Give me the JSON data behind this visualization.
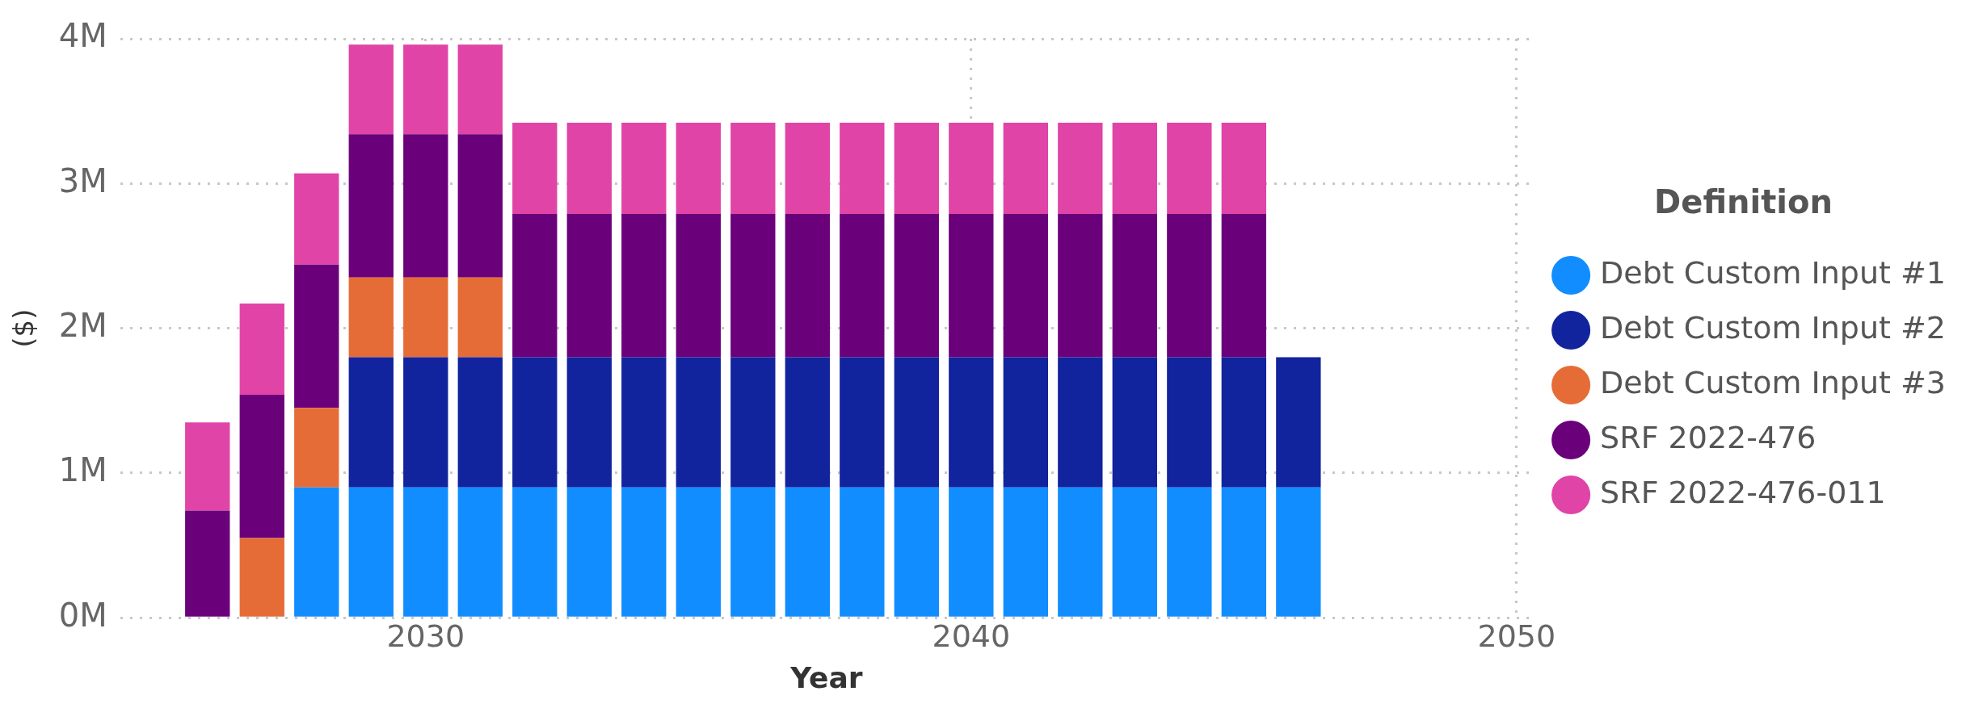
{
  "chart_data": {
    "type": "bar",
    "stacked": true,
    "xlabel": "Year",
    "ylabel": "($)",
    "legend_title": "Definition",
    "legend": "right",
    "grid": true,
    "marker": "circle",
    "x": [
      2026,
      2027,
      2028,
      2029,
      2030,
      2031,
      2032,
      2033,
      2034,
      2035,
      2036,
      2037,
      2038,
      2039,
      2040,
      2041,
      2042,
      2043,
      2044,
      2045,
      2046
    ],
    "xlim": [
      2024.4,
      2050.3
    ],
    "xticks": [
      2030,
      2040,
      2050
    ],
    "ylim": [
      0,
      4000000
    ],
    "yticks": [
      {
        "value": 0,
        "label": "0M"
      },
      {
        "value": 1000000,
        "label": "1M"
      },
      {
        "value": 2000000,
        "label": "2M"
      },
      {
        "value": 3000000,
        "label": "3M"
      },
      {
        "value": 4000000,
        "label": "4M"
      }
    ],
    "series": [
      {
        "name": "Debt Custom Input #1",
        "color": "#118dff",
        "values": [
          null,
          null,
          900000,
          900000,
          900000,
          900000,
          900000,
          900000,
          900000,
          900000,
          900000,
          900000,
          900000,
          900000,
          900000,
          900000,
          900000,
          900000,
          900000,
          900000,
          900000
        ]
      },
      {
        "name": "Debt Custom Input #2",
        "color": "#12239e",
        "values": [
          null,
          null,
          null,
          900000,
          900000,
          900000,
          900000,
          900000,
          900000,
          900000,
          900000,
          900000,
          900000,
          900000,
          900000,
          900000,
          900000,
          900000,
          900000,
          900000,
          900000
        ]
      },
      {
        "name": "Debt Custom Input #3",
        "color": "#e66c37",
        "values": [
          null,
          550000,
          550000,
          550000,
          550000,
          550000,
          null,
          null,
          null,
          null,
          null,
          null,
          null,
          null,
          null,
          null,
          null,
          null,
          null,
          null,
          null
        ]
      },
      {
        "name": "SRF 2022-476",
        "color": "#6b007b",
        "values": [
          740000,
          990000,
          990000,
          990000,
          990000,
          990000,
          990000,
          990000,
          990000,
          990000,
          990000,
          990000,
          990000,
          990000,
          990000,
          990000,
          990000,
          990000,
          990000,
          990000,
          null
        ]
      },
      {
        "name": "SRF 2022-476-011",
        "color": "#e044a7",
        "values": [
          610000,
          630000,
          630000,
          620000,
          620000,
          620000,
          630000,
          630000,
          630000,
          630000,
          630000,
          630000,
          630000,
          630000,
          630000,
          630000,
          630000,
          630000,
          630000,
          630000,
          null
        ]
      }
    ]
  }
}
